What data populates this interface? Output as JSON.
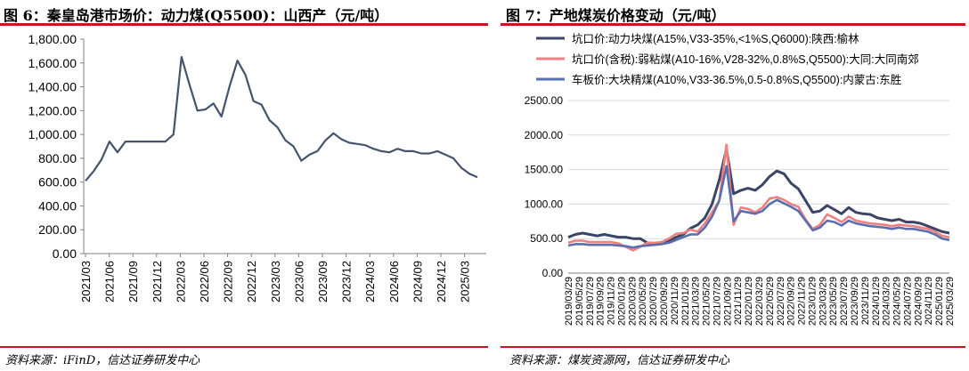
{
  "left": {
    "title": "图 6：秦皇岛港市场价：动力煤(Q5500)：山西产（元/吨）",
    "source": "资料来源：iFinD，信达证券研发中心"
  },
  "right": {
    "title": "图 7：产地煤炭价格变动（元/吨）",
    "source": "资料来源：煤炭资源网，信达证券研发中心"
  },
  "chart_data": [
    {
      "type": "line",
      "title": "秦皇岛港市场价：动力煤(Q5500)：山西产（元/吨）",
      "unit": "元/吨",
      "grid": false,
      "ylim": [
        0,
        1800
      ],
      "yticks": [
        "0.00",
        "200.00",
        "400.00",
        "600.00",
        "800.00",
        "1,000.00",
        "1,200.00",
        "1,400.00",
        "1,600.00",
        "1,800.00"
      ],
      "xticks": [
        "2021/03",
        "2021/06",
        "2021/09",
        "2021/12",
        "2022/03",
        "2022/06",
        "2022/09",
        "2022/12",
        "2023/03",
        "2023/06",
        "2023/09",
        "2023/12",
        "2024/03",
        "2024/06",
        "2024/09",
        "2024/12",
        "2025/03"
      ],
      "color": "#44546a",
      "series": [
        {
          "x": [
            "2021/03",
            "2021/04",
            "2021/05",
            "2021/06",
            "2021/07",
            "2021/08",
            "2021/09",
            "2021/10",
            "2021/11",
            "2021/12",
            "2022/01",
            "2022/02",
            "2022/03",
            "2022/04",
            "2022/05",
            "2022/06",
            "2022/07",
            "2022/08",
            "2022/09",
            "2022/10",
            "2022/11",
            "2022/12",
            "2023/01",
            "2023/02",
            "2023/03",
            "2023/04",
            "2023/05",
            "2023/06",
            "2023/07",
            "2023/08",
            "2023/09",
            "2023/10",
            "2023/11",
            "2023/12",
            "2024/01",
            "2024/02",
            "2024/03",
            "2024/04",
            "2024/05",
            "2024/06",
            "2024/07",
            "2024/08",
            "2024/09",
            "2024/10",
            "2024/11",
            "2024/12",
            "2025/01",
            "2025/02",
            "2025/03",
            "2025/04"
          ],
          "values": [
            610,
            690,
            790,
            940,
            850,
            940,
            940,
            940,
            940,
            940,
            940,
            1000,
            1650,
            1420,
            1200,
            1210,
            1260,
            1150,
            1400,
            1620,
            1500,
            1280,
            1250,
            1120,
            1060,
            950,
            900,
            780,
            830,
            860,
            950,
            1010,
            960,
            930,
            920,
            910,
            880,
            860,
            850,
            880,
            860,
            860,
            840,
            840,
            860,
            830,
            800,
            720,
            670,
            640
          ]
        }
      ]
    },
    {
      "type": "line",
      "title": "产地煤炭价格变动（元/吨）",
      "unit": "元/吨",
      "grid": true,
      "ylim": [
        0,
        2500
      ],
      "legend_position": "top",
      "yticks": [
        "0.00",
        "500.00",
        "1000.00",
        "1500.00",
        "2000.00",
        "2500.00"
      ],
      "xticks": [
        "2019/03/29",
        "2019/05/29",
        "2019/07/29",
        "2019/09/29",
        "2019/11/29",
        "2020/01/29",
        "2020/03/29",
        "2020/05/29",
        "2020/07/29",
        "2020/09/29",
        "2020/11/29",
        "2021/01/29",
        "2021/03/29",
        "2021/05/29",
        "2021/07/29",
        "2021/09/29",
        "2021/11/29",
        "2022/01/29",
        "2022/03/29",
        "2022/05/29",
        "2022/07/29",
        "2022/09/29",
        "2022/11/29",
        "2023/01/29",
        "2023/03/29",
        "2023/05/29",
        "2023/07/29",
        "2023/09/29",
        "2023/11/29",
        "2024/01/29",
        "2024/03/29",
        "2024/05/29",
        "2024/07/29",
        "2024/09/29",
        "2024/11/29",
        "2025/01/29",
        "2025/03/29"
      ],
      "series": [
        {
          "name": "坑口价:动力块煤(A15%,V33-35%,<1%S,Q6000):陕西:榆林",
          "color": "#3b4466",
          "values": [
            520,
            560,
            580,
            560,
            540,
            560,
            540,
            520,
            520,
            500,
            500,
            440,
            430,
            430,
            460,
            520,
            560,
            650,
            700,
            800,
            1000,
            1350,
            1800,
            1150,
            1200,
            1230,
            1200,
            1280,
            1400,
            1480,
            1440,
            1300,
            1220,
            1050,
            880,
            900,
            980,
            920,
            860,
            950,
            880,
            860,
            850,
            800,
            780,
            760,
            780,
            740,
            740,
            720,
            680,
            640,
            600,
            580
          ]
        },
        {
          "name": "坑口价(含税):弱粘煤(A10-16%,V28-32%,0.8%S,Q5500):大同:大同南郊",
          "color": "#f08080",
          "values": [
            440,
            470,
            470,
            450,
            450,
            450,
            450,
            430,
            380,
            330,
            380,
            440,
            440,
            450,
            500,
            570,
            580,
            630,
            600,
            720,
            880,
            1050,
            1860,
            700,
            950,
            930,
            880,
            950,
            1080,
            1100,
            1060,
            1000,
            960,
            780,
            640,
            700,
            850,
            800,
            740,
            820,
            760,
            740,
            720,
            710,
            700,
            680,
            700,
            690,
            680,
            660,
            640,
            600,
            540,
            520
          ]
        },
        {
          "name": "车板价:大块精煤(A10%,V33-36.5%,0.5-0.8%S,Q5500):内蒙古:东胜",
          "color": "#5a6fae",
          "values": [
            400,
            420,
            420,
            410,
            410,
            410,
            410,
            400,
            390,
            370,
            390,
            400,
            410,
            420,
            440,
            480,
            520,
            560,
            560,
            660,
            820,
            1050,
            1550,
            750,
            900,
            880,
            860,
            900,
            1000,
            1060,
            1010,
            960,
            900,
            760,
            620,
            660,
            760,
            740,
            690,
            760,
            720,
            700,
            680,
            670,
            660,
            640,
            660,
            640,
            640,
            620,
            600,
            560,
            500,
            480
          ]
        }
      ]
    }
  ]
}
